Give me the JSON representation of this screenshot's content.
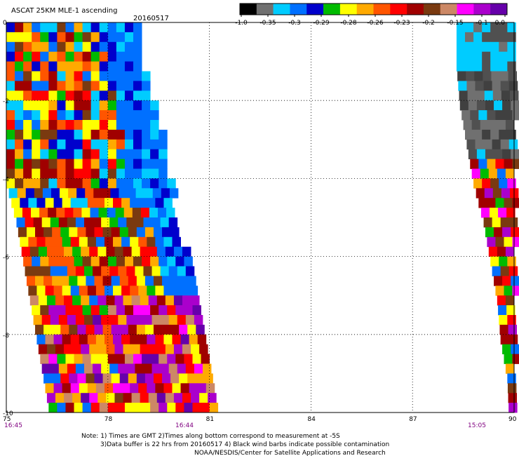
{
  "header": {
    "title": "ASCAT 25KM MLE-1 ascending",
    "date": "20160517"
  },
  "colorbar": {
    "ticks": [
      "-1.0",
      "-0.35",
      "-0.3",
      "-0.29",
      "-0.28",
      "-0.26",
      "-0.23",
      "-0.2",
      "-0.15",
      "-0.1",
      "0.0"
    ],
    "colors": [
      "#000000",
      "#707070",
      "#00ccff",
      "#0070ff",
      "#0000cc",
      "#00bb00",
      "#ffff00",
      "#ffaa00",
      "#ff5500",
      "#ff0000",
      "#a00000",
      "#7a3a10",
      "#cc8866",
      "#ff00ff",
      "#aa00cc",
      "#6600aa"
    ]
  },
  "time_labels": {
    "left": "16:45",
    "middle": "16:44",
    "right": "15:05"
  },
  "notes": {
    "line1": "Note: 1) Times are GMT 2)Times along bottom correspond to measurement at -5S",
    "line2": "3)Data buffer is 22 hrs from 20160517 4) Black wind barbs indicate possible contamination",
    "line3": "NOAA/NESDIS/Center for Satellite Applications and Research"
  },
  "chart_data": {
    "type": "heatmap",
    "title": "ASCAT 25KM MLE-1 ascending",
    "subtitle": "20160517",
    "xlim": [
      75,
      90
    ],
    "ylim": [
      -10,
      0
    ],
    "x_ticks": [
      "75",
      "78",
      "81",
      "84",
      "87",
      "90"
    ],
    "y_ticks": [
      "0",
      "-2",
      "-4",
      "-6",
      "-8",
      "-10"
    ],
    "x_tick_values": [
      75,
      78,
      81,
      84,
      87,
      90
    ],
    "y_tick_values": [
      0,
      -2,
      -4,
      -6,
      -8,
      -10
    ],
    "grid": true,
    "cell_deg": 0.25,
    "swaths": [
      {
        "name": "west swath",
        "rows": [
          {
            "lat": 0.0,
            "lon_start": 75.0,
            "lon_end": 78.9
          },
          {
            "lat": -1.0,
            "lon_start": 75.0,
            "lon_end": 79.0
          },
          {
            "lat": -2.0,
            "lon_start": 75.0,
            "lon_end": 79.3
          },
          {
            "lat": -3.0,
            "lon_start": 75.0,
            "lon_end": 79.6
          },
          {
            "lat": -4.0,
            "lon_start": 75.0,
            "lon_end": 79.8
          },
          {
            "lat": -5.0,
            "lon_start": 75.3,
            "lon_end": 80.0
          },
          {
            "lat": -6.0,
            "lon_start": 75.5,
            "lon_end": 80.3
          },
          {
            "lat": -7.0,
            "lon_start": 75.7,
            "lon_end": 80.5
          },
          {
            "lat": -8.0,
            "lon_start": 75.9,
            "lon_end": 80.8
          },
          {
            "lat": -9.0,
            "lon_start": 76.1,
            "lon_end": 81.0
          },
          {
            "lat": -10.0,
            "lon_start": 76.3,
            "lon_end": 81.2
          }
        ]
      },
      {
        "name": "east swath",
        "rows": [
          {
            "lat": 0.0,
            "lon_start": 88.3,
            "lon_end": 90.0
          },
          {
            "lat": -1.0,
            "lon_start": 88.3,
            "lon_end": 90.0
          },
          {
            "lat": -2.0,
            "lon_start": 88.4,
            "lon_end": 90.0
          },
          {
            "lat": -3.0,
            "lon_start": 88.6,
            "lon_end": 90.0
          },
          {
            "lat": -4.0,
            "lon_start": 88.8,
            "lon_end": 90.0
          },
          {
            "lat": -5.0,
            "lon_start": 89.1,
            "lon_end": 90.0
          },
          {
            "lat": -6.0,
            "lon_start": 89.3,
            "lon_end": 90.0
          },
          {
            "lat": -7.0,
            "lon_start": 89.5,
            "lon_end": 90.0
          },
          {
            "lat": -8.0,
            "lon_start": 89.6,
            "lon_end": 90.0
          },
          {
            "lat": -9.0,
            "lon_start": 89.8,
            "lon_end": 90.0
          },
          {
            "lat": -10.0,
            "lon_start": 89.85,
            "lon_end": 90.0
          }
        ]
      }
    ]
  }
}
